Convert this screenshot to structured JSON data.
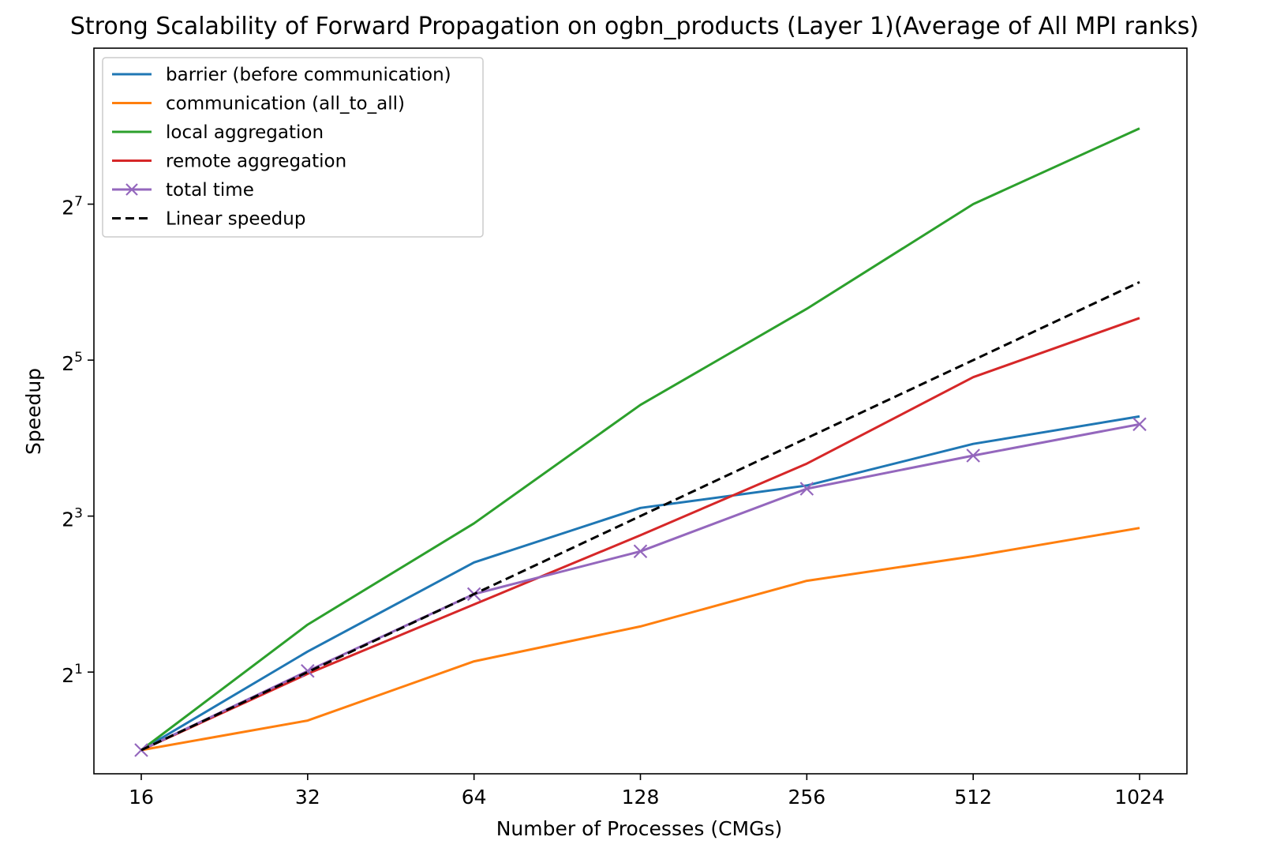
{
  "chart_data": {
    "type": "line",
    "title": "Strong Scalability of Forward Propagation on ogbn_products (Layer 1)(Average of All MPI ranks)",
    "xlabel": "Number of Processes (CMGs)",
    "ylabel": "Speedup",
    "x": [
      16,
      32,
      64,
      128,
      256,
      512,
      1024
    ],
    "x_tick_labels": [
      "16",
      "32",
      "64",
      "128",
      "256",
      "512",
      "1024"
    ],
    "x_scale": "log2",
    "y_scale": "log2",
    "y_ticks": [
      {
        "base": "2",
        "exp": "1"
      },
      {
        "base": "2",
        "exp": "3"
      },
      {
        "base": "2",
        "exp": "5"
      },
      {
        "base": "2",
        "exp": "7"
      }
    ],
    "ylim": [
      0.81,
      512
    ],
    "grid": false,
    "legend_position": "upper left",
    "series": [
      {
        "name": "barrier (before communication)",
        "color": "#1f77b4",
        "marker": "none",
        "style": "solid",
        "values": [
          1.0,
          2.4,
          5.3,
          8.6,
          10.5,
          15.2,
          19.4
        ]
      },
      {
        "name": "communication (all_to_all)",
        "color": "#ff7f0e",
        "marker": "none",
        "style": "solid",
        "values": [
          1.0,
          1.3,
          2.2,
          3.0,
          4.5,
          5.6,
          7.2
        ]
      },
      {
        "name": "local aggregation",
        "color": "#2ca02c",
        "marker": "none",
        "style": "solid",
        "values": [
          1.0,
          3.05,
          7.5,
          21.5,
          50.5,
          128,
          251
        ]
      },
      {
        "name": "remote aggregation",
        "color": "#d62728",
        "marker": "none",
        "style": "solid",
        "values": [
          1.0,
          1.97,
          3.65,
          6.75,
          12.75,
          27.5,
          46.5
        ]
      },
      {
        "name": "total time",
        "color": "#9467bd",
        "marker": "x",
        "style": "solid",
        "values": [
          1.0,
          2.02,
          4.0,
          5.85,
          10.2,
          13.7,
          18.1
        ]
      },
      {
        "name": "Linear speedup",
        "color": "#000000",
        "marker": "none",
        "style": "dashed",
        "values": [
          1,
          2,
          4,
          8,
          16,
          32,
          64
        ]
      }
    ]
  }
}
